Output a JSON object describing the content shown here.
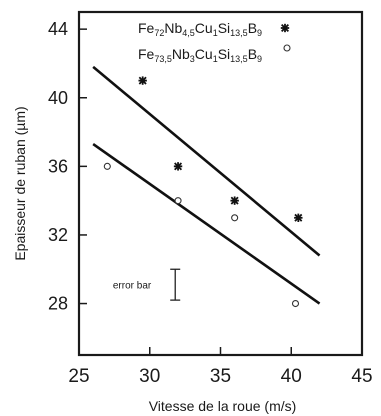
{
  "chart_data": {
    "type": "scatter",
    "xlabel": "Vitesse de la roue (m/s)",
    "ylabel": "Epaisseur de ruban (µm)",
    "xlim": [
      25,
      45
    ],
    "ylim": [
      25,
      45
    ],
    "x_ticks": [
      25,
      30,
      35,
      40,
      45
    ],
    "y_ticks": [
      28,
      32,
      36,
      40,
      44
    ],
    "grid": false,
    "legend_position": "top-right",
    "series": [
      {
        "name": "Fe72Nb4,5Cu1Si13,5B9",
        "legend_parts": [
          {
            "t": "Fe",
            "sub": false
          },
          {
            "t": "72",
            "sub": true
          },
          {
            "t": "Nb",
            "sub": false
          },
          {
            "t": "4,5",
            "sub": true
          },
          {
            "t": "Cu",
            "sub": false
          },
          {
            "t": "1",
            "sub": true
          },
          {
            "t": "Si",
            "sub": false
          },
          {
            "t": "13,5",
            "sub": true
          },
          {
            "t": "B",
            "sub": false
          },
          {
            "t": "9",
            "sub": true
          }
        ],
        "marker": "star",
        "points": [
          [
            29.5,
            41.0
          ],
          [
            32.0,
            36.0
          ],
          [
            36.0,
            34.0
          ],
          [
            40.5,
            33.0
          ]
        ],
        "trend_line": [
          [
            26.0,
            41.8
          ],
          [
            42.0,
            30.8
          ]
        ]
      },
      {
        "name": "Fe73,5Nb3Cu1Si13,5B9",
        "legend_parts": [
          {
            "t": "Fe",
            "sub": false
          },
          {
            "t": "73,5",
            "sub": true
          },
          {
            "t": "Nb",
            "sub": false
          },
          {
            "t": "3",
            "sub": true
          },
          {
            "t": "Cu",
            "sub": false
          },
          {
            "t": "1",
            "sub": true
          },
          {
            "t": "Si",
            "sub": false
          },
          {
            "t": "13,5",
            "sub": true
          },
          {
            "t": "B",
            "sub": false
          },
          {
            "t": "9",
            "sub": true
          }
        ],
        "marker": "circle",
        "points": [
          [
            27.0,
            36.0
          ],
          [
            32.0,
            34.0
          ],
          [
            36.0,
            33.0
          ],
          [
            40.3,
            28.0
          ]
        ],
        "trend_line": [
          [
            26.0,
            37.3
          ],
          [
            42.0,
            28.0
          ]
        ]
      }
    ],
    "annotations": [
      {
        "text": "error bar",
        "x": 31.8,
        "y_low": 28.2,
        "y_high": 30.0
      }
    ]
  }
}
